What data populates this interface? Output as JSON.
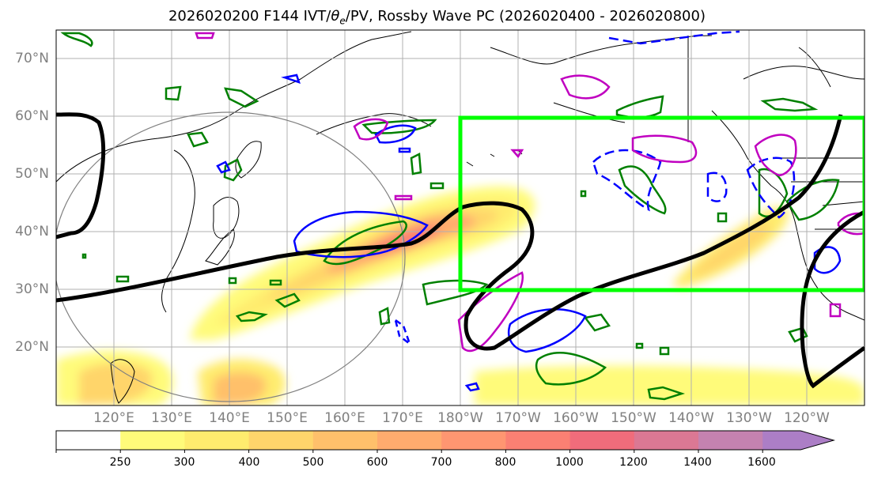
{
  "title": {
    "prefix": "2026020200 F144 IVT/",
    "theta": "θ",
    "theta_sub": "e",
    "suffix": "/PV, Rossby Wave PC (2026020400 - 2026020800)"
  },
  "lat_labels": [
    "70°N",
    "60°N",
    "50°N",
    "40°N",
    "30°N",
    "20°N"
  ],
  "lon_labels": [
    "120°E",
    "130°E",
    "140°E",
    "150°E",
    "160°E",
    "170°E",
    "180°W",
    "170°W",
    "160°W",
    "150°W",
    "140°W",
    "130°W",
    "120°W"
  ],
  "colorbar": {
    "ticks": [
      "250",
      "300",
      "400",
      "500",
      "600",
      "700",
      "800",
      "1000",
      "1200",
      "1400",
      "1600"
    ],
    "colors": [
      "#fffb7a",
      "#ffec6e",
      "#ffd56b",
      "#ffc06b",
      "#ffab6e",
      "#ff9671",
      "#fb8073",
      "#f06c7b",
      "#db7894",
      "#c482b0",
      "#ac7ec6"
    ]
  },
  "colors": {
    "jet_contour": "#000000",
    "focus_box": "#00ff00",
    "theta_e_contour": "#0000ff",
    "pv_contour": "#c000c0",
    "green_contour": "#008000",
    "coast": "#000000",
    "range_circle": "#808080"
  }
}
